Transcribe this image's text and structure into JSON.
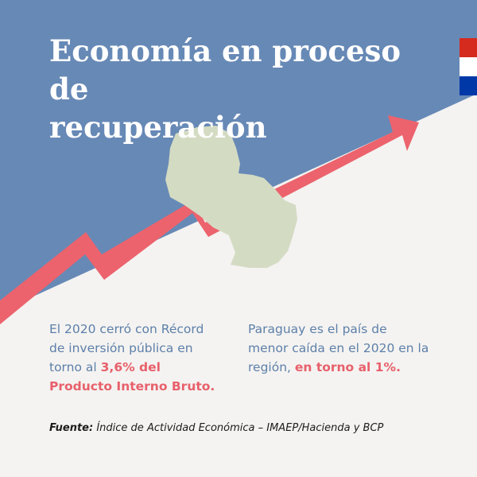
{
  "title_line1": "Economía en proceso de",
  "title_line2": "recuperación",
  "flag_colors": [
    "#d52b1e",
    "#ffffff",
    "#0038a8"
  ],
  "colors": {
    "sky": "#6789b6",
    "paper": "#f4f3f1",
    "arrow": "#ec636d",
    "map": "#d4dbc3",
    "text_blue": "#5d7fa9",
    "text_red": "#e8606b"
  },
  "map_icon": "paraguay-map",
  "left_block": {
    "line1": "El 2020 cerró con Récord",
    "line2": "de inversión pública en",
    "line3_prefix": "torno al ",
    "line3_highlight": "3,6% del",
    "line4_highlight": "Producto Interno Bruto."
  },
  "right_block": {
    "line1": "Paraguay es el país de",
    "line2": "menor caída en el 2020 en la",
    "line3_prefix": "región, ",
    "line3_highlight": "en torno al 1%."
  },
  "source": {
    "label": "Fuente:",
    "text": "Índice de Actividad Económica – IMAEP/Hacienda y BCP"
  }
}
